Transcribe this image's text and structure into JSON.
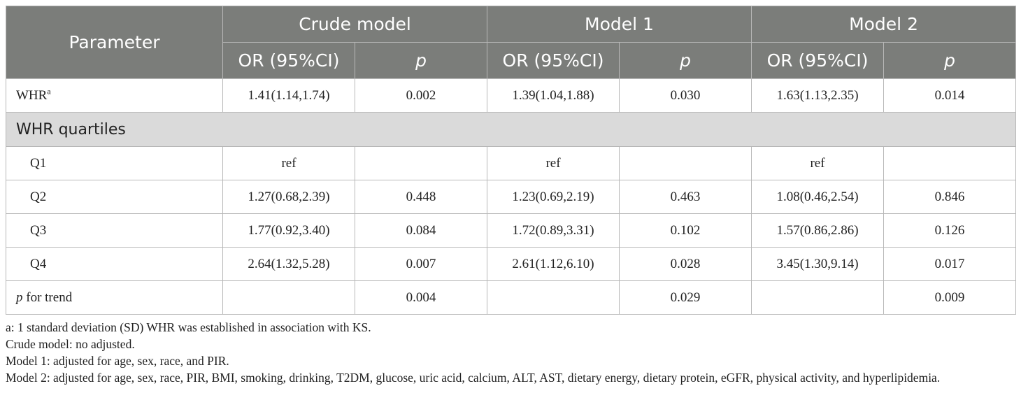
{
  "table": {
    "header": {
      "parameter": "Parameter",
      "groups": [
        "Crude model",
        "Model 1",
        "Model 2"
      ],
      "or_label": "OR (95%CI)",
      "p_label": "p"
    },
    "whr_row": {
      "label": "WHR",
      "sup": "a",
      "values": [
        "1.41(1.14,1.74)",
        "0.002",
        "1.39(1.04,1.88)",
        "0.030",
        "1.63(1.13,2.35)",
        "0.014"
      ]
    },
    "section_label": "WHR quartiles",
    "quartiles": [
      {
        "label": "Q1",
        "values": [
          "ref",
          "",
          "ref",
          "",
          "ref",
          ""
        ]
      },
      {
        "label": "Q2",
        "values": [
          "1.27(0.68,2.39)",
          "0.448",
          "1.23(0.69,2.19)",
          "0.463",
          "1.08(0.46,2.54)",
          "0.846"
        ]
      },
      {
        "label": "Q3",
        "values": [
          "1.77(0.92,3.40)",
          "0.084",
          "1.72(0.89,3.31)",
          "0.102",
          "1.57(0.86,2.86)",
          "0.126"
        ]
      },
      {
        "label": "Q4",
        "values": [
          "2.64(1.32,5.28)",
          "0.007",
          "2.61(1.12,6.10)",
          "0.028",
          "3.45(1.30,9.14)",
          "0.017"
        ]
      }
    ],
    "trend_row": {
      "label_p": "p",
      "label_rest": " for trend",
      "values": [
        "",
        "0.004",
        "",
        "0.029",
        "",
        "0.009"
      ]
    }
  },
  "notes": [
    "a: 1 standard deviation (SD) WHR was established in association with KS.",
    "Crude model: no adjusted.",
    "Model 1: adjusted for age, sex, race, and PIR.",
    "Model 2: adjusted for age, sex, race, PIR, BMI, smoking, drinking, T2DM, glucose, uric acid, calcium, ALT, AST, dietary energy, dietary protein, eGFR, physical activity, and hyperlipidemia."
  ]
}
